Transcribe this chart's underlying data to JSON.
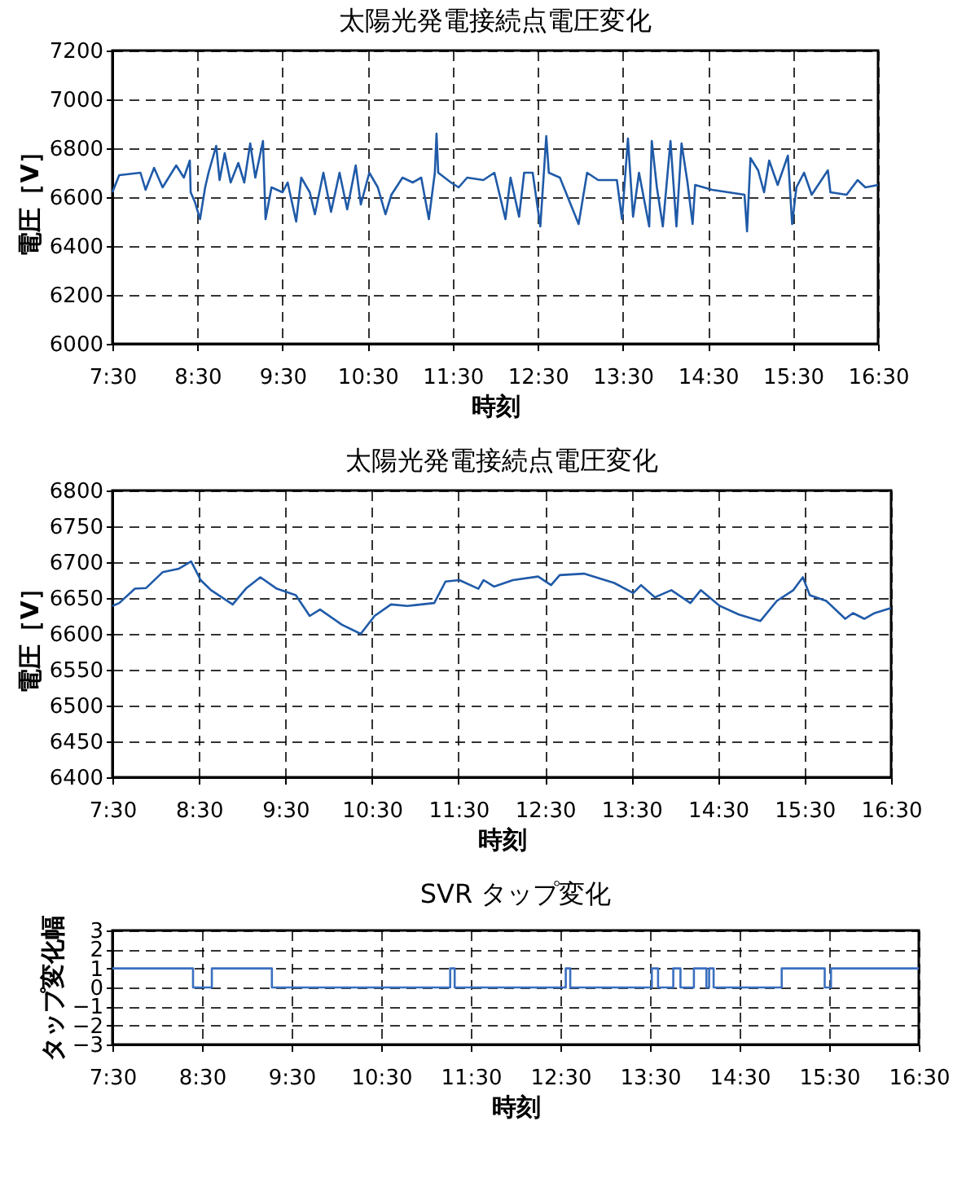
{
  "chart_data": [
    {
      "type": "line",
      "title": "太陽光発電接続点電圧変化",
      "xlabel": "時刻",
      "ylabel": "電圧［V］",
      "xlim": [
        7.5,
        16.5
      ],
      "xticks": [
        {
          "value": 7.5,
          "label": "7:30"
        },
        {
          "value": 8.5,
          "label": "8:30"
        },
        {
          "value": 9.5,
          "label": "9:30"
        },
        {
          "value": 10.5,
          "label": "10:30"
        },
        {
          "value": 11.5,
          "label": "11:30"
        },
        {
          "value": 12.5,
          "label": "12:30"
        },
        {
          "value": 13.5,
          "label": "13:30"
        },
        {
          "value": 14.5,
          "label": "14:30"
        },
        {
          "value": 15.5,
          "label": "15:30"
        },
        {
          "value": 16.5,
          "label": "16:30"
        }
      ],
      "ylim": [
        6000,
        7200
      ],
      "yticks": [
        6000,
        6200,
        6400,
        6600,
        6800,
        7000,
        7200
      ],
      "grid": true,
      "series": [
        {
          "color": "#1f5aa8",
          "x": [
            7.5,
            7.58,
            7.83,
            7.89,
            7.99,
            8.09,
            8.25,
            8.34,
            8.41,
            8.42,
            8.47,
            8.53,
            8.59,
            8.63,
            8.72,
            8.76,
            8.82,
            8.89,
            8.98,
            9.05,
            9.12,
            9.18,
            9.27,
            9.3,
            9.37,
            9.5,
            9.56,
            9.66,
            9.72,
            9.82,
            9.88,
            9.98,
            10.07,
            10.17,
            10.26,
            10.36,
            10.42,
            10.52,
            10.62,
            10.71,
            10.78,
            10.91,
            11.03,
            11.13,
            11.22,
            11.29,
            11.31,
            11.33,
            11.48,
            11.57,
            11.67,
            11.86,
            11.99,
            12.12,
            12.18,
            12.28,
            12.34,
            12.44,
            12.53,
            12.6,
            12.63,
            12.76,
            12.98,
            13.08,
            13.21,
            13.43,
            13.49,
            13.56,
            13.62,
            13.69,
            13.81,
            13.84,
            13.9,
            13.97,
            14.06,
            14.13,
            14.19,
            14.26,
            14.32,
            14.35,
            14.55,
            14.74,
            14.93,
            14.96,
            15.0,
            15.09,
            15.16,
            15.22,
            15.32,
            15.44,
            15.49,
            15.54,
            15.63,
            15.72,
            15.91,
            15.94,
            16.13,
            16.26,
            16.35,
            16.5
          ],
          "values": [
            6620,
            6690,
            6700,
            6630,
            6720,
            6640,
            6730,
            6680,
            6750,
            6620,
            6580,
            6510,
            6640,
            6700,
            6810,
            6670,
            6780,
            6660,
            6740,
            6660,
            6820,
            6680,
            6830,
            6510,
            6640,
            6620,
            6660,
            6500,
            6680,
            6620,
            6530,
            6700,
            6540,
            6700,
            6550,
            6730,
            6570,
            6700,
            6640,
            6530,
            6610,
            6680,
            6660,
            6680,
            6510,
            6700,
            6860,
            6700,
            6660,
            6640,
            6680,
            6670,
            6700,
            6510,
            6680,
            6520,
            6700,
            6700,
            6480,
            6850,
            6700,
            6680,
            6490,
            6700,
            6670,
            6670,
            6510,
            6840,
            6520,
            6700,
            6480,
            6830,
            6640,
            6480,
            6830,
            6480,
            6820,
            6660,
            6490,
            6650,
            6630,
            6620,
            6610,
            6460,
            6760,
            6710,
            6620,
            6750,
            6650,
            6770,
            6490,
            6640,
            6700,
            6610,
            6710,
            6620,
            6610,
            6670,
            6640,
            6650
          ]
        }
      ]
    },
    {
      "type": "line",
      "title": "太陽光発電接続点電圧変化",
      "xlabel": "時刻",
      "ylabel": "電圧［V］",
      "xlim": [
        7.5,
        16.5
      ],
      "xticks": [
        {
          "value": 7.5,
          "label": "7:30"
        },
        {
          "value": 8.5,
          "label": "8:30"
        },
        {
          "value": 9.5,
          "label": "9:30"
        },
        {
          "value": 10.5,
          "label": "10:30"
        },
        {
          "value": 11.5,
          "label": "11:30"
        },
        {
          "value": 12.5,
          "label": "12:30"
        },
        {
          "value": 13.5,
          "label": "13:30"
        },
        {
          "value": 14.5,
          "label": "14:30"
        },
        {
          "value": 15.5,
          "label": "15:30"
        },
        {
          "value": 16.5,
          "label": "16:30"
        }
      ],
      "ylim": [
        6400,
        6800
      ],
      "yticks": [
        6400,
        6450,
        6500,
        6550,
        6600,
        6650,
        6700,
        6750,
        6800
      ],
      "grid": true,
      "series": [
        {
          "color": "#1f5aa8",
          "x": [
            7.5,
            7.58,
            7.76,
            7.89,
            8.08,
            8.27,
            8.41,
            8.52,
            8.64,
            8.89,
            9.05,
            9.21,
            9.4,
            9.62,
            9.78,
            9.9,
            10.15,
            10.37,
            10.53,
            10.72,
            10.91,
            11.22,
            11.35,
            11.51,
            11.73,
            11.79,
            11.91,
            12.13,
            12.42,
            12.57,
            12.67,
            12.95,
            13.3,
            13.52,
            13.61,
            13.77,
            13.96,
            14.18,
            14.3,
            14.52,
            14.74,
            14.99,
            15.18,
            15.37,
            15.48,
            15.56,
            15.75,
            15.97,
            16.06,
            16.19,
            16.31,
            16.5
          ],
          "values": [
            6639,
            6643,
            6663,
            6664,
            6686,
            6691,
            6701,
            6675,
            6661,
            6641,
            6664,
            6679,
            6663,
            6654,
            6625,
            6634,
            6613,
            6600,
            6625,
            6641,
            6639,
            6643,
            6673,
            6675,
            6663,
            6675,
            6666,
            6675,
            6680,
            6668,
            6682,
            6684,
            6671,
            6657,
            6668,
            6651,
            6661,
            6643,
            6661,
            6639,
            6627,
            6618,
            6646,
            6661,
            6679,
            6654,
            6646,
            6621,
            6629,
            6621,
            6629,
            6636
          ]
        }
      ]
    },
    {
      "type": "step",
      "title": "SVR タップ変化",
      "xlabel": "時刻",
      "ylabel": "タップ変化幅",
      "xlim": [
        7.5,
        16.5
      ],
      "xticks": [
        {
          "value": 7.5,
          "label": "7:30"
        },
        {
          "value": 8.5,
          "label": "8:30"
        },
        {
          "value": 9.5,
          "label": "9:30"
        },
        {
          "value": 10.5,
          "label": "10:30"
        },
        {
          "value": 11.5,
          "label": "11:30"
        },
        {
          "value": 12.5,
          "label": "12:30"
        },
        {
          "value": 13.5,
          "label": "13:30"
        },
        {
          "value": 14.5,
          "label": "14:30"
        },
        {
          "value": 15.5,
          "label": "15:30"
        },
        {
          "value": 16.5,
          "label": "16:30"
        }
      ],
      "ylim": [
        -3,
        3
      ],
      "yticks": [
        -3,
        -2,
        -1,
        0,
        1,
        2,
        3
      ],
      "grid": true,
      "series": [
        {
          "color": "#3a6fc0",
          "x": [
            7.5,
            8.4,
            8.61,
            9.28,
            11.27,
            11.32,
            12.56,
            12.61,
            13.52,
            13.59,
            13.76,
            13.84,
            13.99,
            14.13,
            14.16,
            14.21,
            14.97,
            15.45,
            15.52,
            16.5
          ],
          "values": [
            1,
            0,
            1,
            0,
            1,
            0,
            1,
            0,
            1,
            0,
            1,
            0,
            1,
            0,
            1,
            0,
            1,
            0,
            1,
            1
          ]
        }
      ]
    }
  ]
}
